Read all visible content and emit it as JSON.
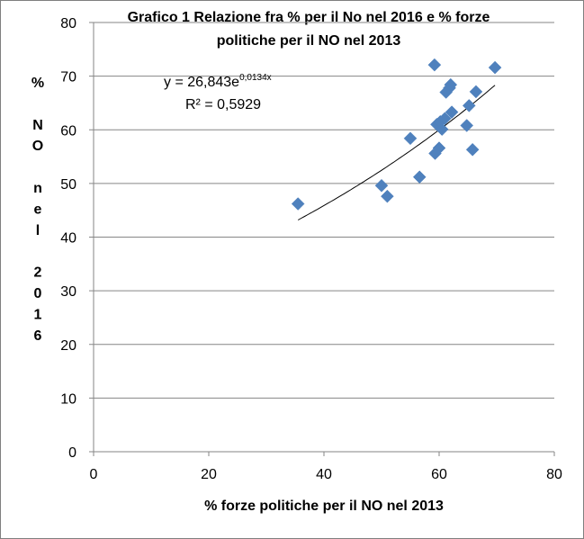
{
  "chart_data": {
    "type": "scatter",
    "title_lines": [
      "Grafico 1 Relazione fra % per il No nel 2016 e % forze",
      "politiche per il NO nel 2013"
    ],
    "xlabel": "% forze politiche per il NO nel 2013",
    "ylabel": "% NO nel 2016",
    "ylabel_chars": [
      "%",
      "",
      "N",
      "O",
      "",
      "n",
      "e",
      "l",
      "",
      "2",
      "0",
      "1",
      "6"
    ],
    "xlim": [
      0,
      80
    ],
    "ylim": [
      0,
      80
    ],
    "x_ticks": [
      0,
      20,
      40,
      60,
      80
    ],
    "y_ticks": [
      0,
      10,
      20,
      30,
      40,
      50,
      60,
      70,
      80
    ],
    "grid": "horizontal",
    "marker_color": "#4f81bd",
    "marker": "diamond",
    "points": [
      {
        "x": 35.5,
        "y": 46.2
      },
      {
        "x": 50.0,
        "y": 49.6
      },
      {
        "x": 51.0,
        "y": 47.6
      },
      {
        "x": 55.0,
        "y": 58.4
      },
      {
        "x": 56.6,
        "y": 51.2
      },
      {
        "x": 59.2,
        "y": 72.1
      },
      {
        "x": 59.3,
        "y": 55.6
      },
      {
        "x": 59.6,
        "y": 61.0
      },
      {
        "x": 60.0,
        "y": 56.6
      },
      {
        "x": 60.2,
        "y": 61.5
      },
      {
        "x": 60.5,
        "y": 60.1
      },
      {
        "x": 61.0,
        "y": 62.1
      },
      {
        "x": 61.2,
        "y": 67.0
      },
      {
        "x": 61.8,
        "y": 67.8
      },
      {
        "x": 62.0,
        "y": 68.4
      },
      {
        "x": 62.2,
        "y": 63.3
      },
      {
        "x": 64.8,
        "y": 60.8
      },
      {
        "x": 65.2,
        "y": 64.5
      },
      {
        "x": 65.8,
        "y": 56.3
      },
      {
        "x": 66.4,
        "y": 67.1
      },
      {
        "x": 69.7,
        "y": 71.6
      }
    ],
    "trendline": {
      "type": "exponential",
      "a": 26.843,
      "b": 0.0134,
      "x_range": [
        35.5,
        69.7
      ],
      "equation_main": "y = 26,843e",
      "equation_exponent": "0,0134x",
      "r2_label": "R² = 0,5929"
    }
  }
}
